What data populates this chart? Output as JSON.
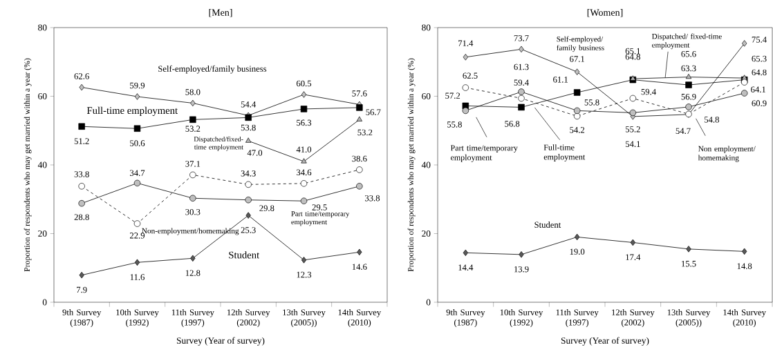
{
  "chart_data": [
    {
      "type": "line",
      "title": "[Men]",
      "xlabel": "Survey (Year of survey)",
      "ylabel": "Proportion of respondents who may get married within a year (%)",
      "categories": [
        "9th Survey (1987)",
        "10th Survey (1992)",
        "11th Survey (1997)",
        "12th Survey (2002)",
        "13th Survey (2005))",
        "14th Survey (2010)"
      ],
      "ylim": [
        0,
        80
      ],
      "yticks": [
        0,
        20,
        40,
        60,
        80
      ],
      "series": [
        {
          "name": "Self-employed/family business",
          "color": "#c0c0c0",
          "marker": "diamond",
          "line_style": "solid",
          "values": [
            62.6,
            59.9,
            58.0,
            54.4,
            60.5,
            57.6
          ],
          "value_labels": [
            "62.6",
            "59.9",
            "58.0",
            "54.4",
            "60.5",
            "57.6"
          ]
        },
        {
          "name": "Full-time employment",
          "color": "#000000",
          "marker": "square",
          "line_style": "solid",
          "values": [
            51.2,
            50.6,
            53.2,
            53.8,
            56.3,
            56.7
          ],
          "value_labels": [
            "51.2",
            "50.6",
            "53.2",
            "53.8",
            "56.3",
            "56.7"
          ]
        },
        {
          "name": "Dispatched/fixed-time employment",
          "color": "#b4b4b4",
          "marker": "triangle",
          "line_style": "solid",
          "values": [
            null,
            null,
            null,
            47.0,
            41.0,
            53.2
          ],
          "value_labels": [
            null,
            null,
            null,
            "47.0",
            "41.0",
            "53.2"
          ]
        },
        {
          "name": "Non-employment/homemaking",
          "color": "#ffffff",
          "marker": "circle",
          "line_style": "dashed",
          "values": [
            33.8,
            22.9,
            37.1,
            34.3,
            34.6,
            38.6
          ],
          "value_labels": [
            "33.8",
            "22.9",
            "37.1",
            "34.3",
            "34.6",
            "38.6"
          ]
        },
        {
          "name": "Part time/temporary employment",
          "color": "#bfbfbf",
          "marker": "circle",
          "line_style": "solid",
          "values": [
            28.8,
            34.7,
            30.3,
            29.8,
            29.5,
            33.8
          ],
          "value_labels": [
            "28.8",
            "34.7",
            "30.3",
            "29.8",
            "29.5",
            "33.8"
          ]
        },
        {
          "name": "Student",
          "color": "#595959",
          "marker": "diamond",
          "line_style": "solid",
          "values": [
            7.9,
            11.6,
            12.8,
            25.3,
            12.3,
            14.6
          ],
          "value_labels": [
            "7.9",
            "11.6",
            "12.8",
            "25.3",
            "12.3",
            "14.6"
          ]
        }
      ]
    },
    {
      "type": "line",
      "title": "[Women]",
      "xlabel": "Survey (Year of survey)",
      "ylabel": "Proportion of respondents who may get married within a year (%)",
      "categories": [
        "9th Survey (1987)",
        "10th Survey (1992)",
        "11th Survey (1997)",
        "12th Survey (2002)",
        "13th Survey (2005))",
        "14th Survey (2010)"
      ],
      "ylim": [
        0,
        80
      ],
      "yticks": [
        0,
        20,
        40,
        60,
        80
      ],
      "series": [
        {
          "name": "Self-employed/ family business",
          "color": "#c0c0c0",
          "marker": "diamond",
          "line_style": "solid",
          "values": [
            71.4,
            73.7,
            67.1,
            54.1,
            54.7,
            75.4
          ],
          "value_labels": [
            "71.4",
            "73.7",
            "67.1",
            "54.1",
            "54.7",
            "75.4"
          ]
        },
        {
          "name": "Full-time employment",
          "color": "#000000",
          "marker": "square",
          "line_style": "solid",
          "values": [
            57.2,
            56.8,
            61.1,
            64.8,
            63.3,
            64.8
          ],
          "value_labels": [
            "57.2",
            "56.8",
            "61.1",
            "64.8",
            "63.3",
            "64.8"
          ]
        },
        {
          "name": "Dispatched/ fixed-time employment",
          "color": "#b4b4b4",
          "marker": "triangle",
          "line_style": "solid",
          "values": [
            null,
            null,
            null,
            65.1,
            65.6,
            65.3
          ],
          "value_labels": [
            null,
            null,
            null,
            "65.1",
            "65.6",
            "65.3"
          ]
        },
        {
          "name": "Non employment/ homemaking",
          "color": "#ffffff",
          "marker": "circle",
          "line_style": "dashed",
          "values": [
            62.5,
            59.4,
            54.2,
            59.4,
            54.8,
            64.1
          ],
          "value_labels": [
            "62.5",
            "59.4",
            "54.2",
            "59.4",
            "54.8",
            "64.1"
          ]
        },
        {
          "name": "Part time/temporary employment",
          "color": "#bfbfbf",
          "marker": "circle",
          "line_style": "solid",
          "values": [
            55.8,
            61.3,
            55.8,
            55.2,
            56.9,
            60.9
          ],
          "value_labels": [
            "55.8",
            "61.3",
            "55.8",
            "55.2",
            "56.9",
            "60.9"
          ]
        },
        {
          "name": "Student",
          "color": "#595959",
          "marker": "diamond",
          "line_style": "solid",
          "values": [
            14.4,
            13.9,
            19.0,
            17.4,
            15.5,
            14.8
          ],
          "value_labels": [
            "14.4",
            "13.9",
            "19.0",
            "17.4",
            "15.5",
            "14.8"
          ]
        }
      ]
    }
  ]
}
